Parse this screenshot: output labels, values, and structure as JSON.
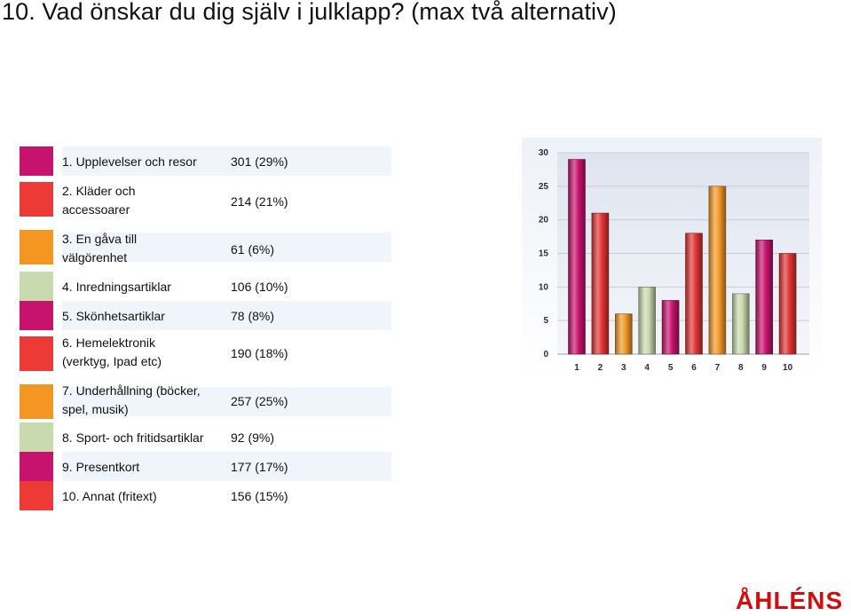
{
  "title": "10. Vad önskar du dig själv i julklapp? (max två alternativ)",
  "brand": "ÅHLÉNS",
  "legend": [
    {
      "label": "1. Upplevelser och resor",
      "value": "301 (29%)",
      "color": "#c8136e"
    },
    {
      "label": "2. Kläder och accessoarer",
      "value": "214 (21%)",
      "color": "#ee3a36"
    },
    {
      "label": "3. En gåva till välgörenhet",
      "value": "61 (6%)",
      "color": "#f49722"
    },
    {
      "label": "4. Inredningsartiklar",
      "value": "106 (10%)",
      "color": "#c9dbae"
    },
    {
      "label": "5. Skönhetsartiklar",
      "value": "78 (8%)",
      "color": "#c8136e"
    },
    {
      "label": "6. Hemelektronik (verktyg, Ipad etc)",
      "value": "190 (18%)",
      "color": "#ee3a36"
    },
    {
      "label": "7. Underhållning (böcker, spel, musik)",
      "value": "257 (25%)",
      "color": "#f49722"
    },
    {
      "label": "8. Sport- och fritidsartiklar",
      "value": "92 (9%)",
      "color": "#c9dbae"
    },
    {
      "label": "9. Presentkort",
      "value": "177 (17%)",
      "color": "#c8136e"
    },
    {
      "label": "10. Annat (fritext)",
      "value": "156 (15%)",
      "color": "#ee3a36"
    }
  ],
  "chart_data": {
    "type": "bar",
    "categories": [
      "1",
      "2",
      "3",
      "4",
      "5",
      "6",
      "7",
      "8",
      "9",
      "10"
    ],
    "values": [
      29,
      21,
      6,
      10,
      8,
      18,
      25,
      9,
      17,
      15
    ],
    "colors": [
      "#c8136e",
      "#e43535",
      "#f39a2a",
      "#c9dbae",
      "#c8136e",
      "#e43535",
      "#f39a2a",
      "#c9dbae",
      "#c8136e",
      "#e43535"
    ],
    "yticks": [
      0,
      5,
      10,
      15,
      20,
      25,
      30
    ],
    "ylim": [
      0,
      30
    ],
    "grid": true,
    "title": "",
    "xlabel": "",
    "ylabel": ""
  }
}
